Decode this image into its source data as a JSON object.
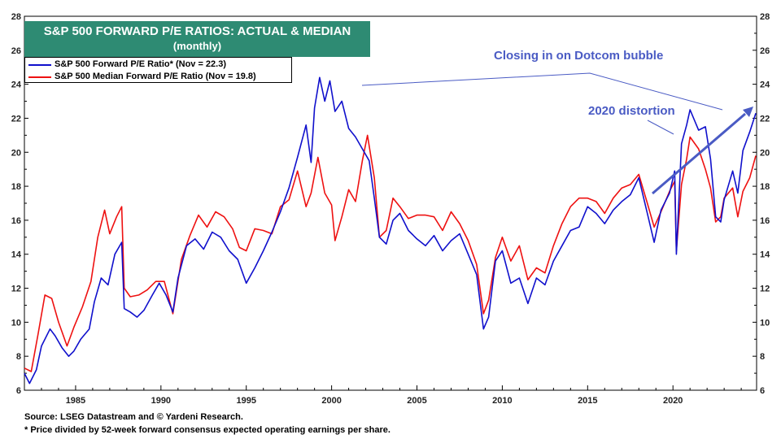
{
  "title": {
    "line1": "S&P 500 FORWARD P/E RATIOS: ACTUAL & MEDIAN",
    "line2": "(monthly)"
  },
  "legend": {
    "items": [
      {
        "label": "S&P 500 Forward P/E Ratio* (Nov = 22.3)",
        "color": "#1010cc"
      },
      {
        "label": "S&P 500 Median Forward P/E Ratio  (Nov = 19.8)",
        "color": "#ee1111"
      }
    ]
  },
  "annotations": {
    "dotcom": "Closing in on Dotcom bubble",
    "distortion": "2020 distortion"
  },
  "footer": {
    "source": "Source: LSEG Datastream and © Yardeni Research.",
    "note": "* Price divided by 52-week forward consensus expected operating earnings per share."
  },
  "colors": {
    "title_bg": "#2e8b73",
    "annotation": "#4a5bc4",
    "actual": "#1010cc",
    "median": "#ee1111"
  },
  "chart_data": {
    "type": "line",
    "title": "S&P 500 FORWARD P/E RATIOS: ACTUAL & MEDIAN",
    "subtitle": "(monthly)",
    "xlabel": "",
    "ylabel": "",
    "xlim": [
      1982.0,
      2024.9
    ],
    "ylim": [
      6,
      28
    ],
    "x_ticks": [
      "1985",
      "1990",
      "1995",
      "2000",
      "2005",
      "2010",
      "2015",
      "2020"
    ],
    "y_ticks": [
      "6",
      "8",
      "10",
      "12",
      "14",
      "16",
      "18",
      "20",
      "22",
      "24",
      "26",
      "28"
    ],
    "grid": false,
    "legend_position": "top-left",
    "series": [
      {
        "name": "S&P 500 Forward P/E Ratio* (Nov = 22.3)",
        "color": "#1010cc",
        "points": [
          [
            1982.0,
            7.0
          ],
          [
            1982.3,
            6.4
          ],
          [
            1982.7,
            7.2
          ],
          [
            1983.0,
            8.6
          ],
          [
            1983.5,
            9.6
          ],
          [
            1983.8,
            9.2
          ],
          [
            1984.2,
            8.5
          ],
          [
            1984.6,
            8.0
          ],
          [
            1984.9,
            8.3
          ],
          [
            1985.3,
            9.0
          ],
          [
            1985.8,
            9.6
          ],
          [
            1986.1,
            11.2
          ],
          [
            1986.5,
            12.6
          ],
          [
            1986.9,
            12.2
          ],
          [
            1987.3,
            14.0
          ],
          [
            1987.7,
            14.7
          ],
          [
            1987.85,
            10.8
          ],
          [
            1988.2,
            10.6
          ],
          [
            1988.6,
            10.3
          ],
          [
            1989.0,
            10.7
          ],
          [
            1989.5,
            11.6
          ],
          [
            1989.9,
            12.3
          ],
          [
            1990.3,
            11.6
          ],
          [
            1990.7,
            10.6
          ],
          [
            1991.0,
            12.6
          ],
          [
            1991.5,
            14.5
          ],
          [
            1992.0,
            14.9
          ],
          [
            1992.5,
            14.3
          ],
          [
            1993.0,
            15.3
          ],
          [
            1993.5,
            15.0
          ],
          [
            1994.0,
            14.2
          ],
          [
            1994.5,
            13.7
          ],
          [
            1995.0,
            12.3
          ],
          [
            1995.5,
            13.2
          ],
          [
            1996.0,
            14.2
          ],
          [
            1996.5,
            15.3
          ],
          [
            1997.0,
            16.5
          ],
          [
            1997.5,
            17.9
          ],
          [
            1998.0,
            19.7
          ],
          [
            1998.5,
            21.6
          ],
          [
            1998.8,
            19.4
          ],
          [
            1999.0,
            22.6
          ],
          [
            1999.3,
            24.4
          ],
          [
            1999.6,
            23.0
          ],
          [
            1999.9,
            24.2
          ],
          [
            2000.2,
            22.4
          ],
          [
            2000.6,
            23.0
          ],
          [
            2001.0,
            21.4
          ],
          [
            2001.4,
            20.9
          ],
          [
            2001.8,
            20.2
          ],
          [
            2002.2,
            19.5
          ],
          [
            2002.5,
            17.3
          ],
          [
            2002.8,
            15.0
          ],
          [
            2003.2,
            14.6
          ],
          [
            2003.6,
            16.0
          ],
          [
            2004.0,
            16.4
          ],
          [
            2004.5,
            15.4
          ],
          [
            2005.0,
            14.9
          ],
          [
            2005.5,
            14.5
          ],
          [
            2006.0,
            15.1
          ],
          [
            2006.5,
            14.2
          ],
          [
            2007.0,
            14.8
          ],
          [
            2007.5,
            15.2
          ],
          [
            2008.0,
            14.0
          ],
          [
            2008.5,
            12.8
          ],
          [
            2008.9,
            9.6
          ],
          [
            2009.2,
            10.3
          ],
          [
            2009.6,
            13.6
          ],
          [
            2010.0,
            14.2
          ],
          [
            2010.5,
            12.3
          ],
          [
            2011.0,
            12.6
          ],
          [
            2011.5,
            11.1
          ],
          [
            2012.0,
            12.6
          ],
          [
            2012.5,
            12.2
          ],
          [
            2013.0,
            13.6
          ],
          [
            2013.5,
            14.5
          ],
          [
            2014.0,
            15.4
          ],
          [
            2014.5,
            15.6
          ],
          [
            2015.0,
            16.8
          ],
          [
            2015.5,
            16.4
          ],
          [
            2016.0,
            15.8
          ],
          [
            2016.5,
            16.6
          ],
          [
            2017.0,
            17.1
          ],
          [
            2017.5,
            17.5
          ],
          [
            2018.0,
            18.5
          ],
          [
            2018.5,
            16.4
          ],
          [
            2018.9,
            14.7
          ],
          [
            2019.3,
            16.6
          ],
          [
            2019.8,
            17.6
          ],
          [
            2020.1,
            18.9
          ],
          [
            2020.2,
            14.0
          ],
          [
            2020.5,
            20.5
          ],
          [
            2020.8,
            21.6
          ],
          [
            2021.0,
            22.5
          ],
          [
            2021.5,
            21.3
          ],
          [
            2021.9,
            21.5
          ],
          [
            2022.2,
            19.6
          ],
          [
            2022.5,
            16.2
          ],
          [
            2022.8,
            15.9
          ],
          [
            2023.0,
            17.2
          ],
          [
            2023.5,
            18.9
          ],
          [
            2023.8,
            17.6
          ],
          [
            2024.1,
            20.1
          ],
          [
            2024.5,
            21.2
          ],
          [
            2024.85,
            22.3
          ]
        ]
      },
      {
        "name": "S&P 500 Median Forward P/E Ratio  (Nov = 19.8)",
        "color": "#ee1111",
        "points": [
          [
            1982.0,
            7.3
          ],
          [
            1982.4,
            7.1
          ],
          [
            1982.8,
            9.3
          ],
          [
            1983.2,
            11.6
          ],
          [
            1983.6,
            11.4
          ],
          [
            1984.0,
            10.0
          ],
          [
            1984.5,
            8.6
          ],
          [
            1984.9,
            9.7
          ],
          [
            1985.4,
            10.9
          ],
          [
            1985.9,
            12.4
          ],
          [
            1986.3,
            15.0
          ],
          [
            1986.7,
            16.6
          ],
          [
            1987.0,
            15.2
          ],
          [
            1987.4,
            16.2
          ],
          [
            1987.7,
            16.8
          ],
          [
            1987.85,
            12.0
          ],
          [
            1988.2,
            11.5
          ],
          [
            1988.7,
            11.6
          ],
          [
            1989.2,
            11.9
          ],
          [
            1989.7,
            12.4
          ],
          [
            1990.2,
            12.4
          ],
          [
            1990.7,
            10.5
          ],
          [
            1991.2,
            13.7
          ],
          [
            1991.7,
            15.1
          ],
          [
            1992.2,
            16.3
          ],
          [
            1992.7,
            15.6
          ],
          [
            1993.2,
            16.5
          ],
          [
            1993.7,
            16.2
          ],
          [
            1994.2,
            15.5
          ],
          [
            1994.6,
            14.4
          ],
          [
            1995.0,
            14.2
          ],
          [
            1995.5,
            15.5
          ],
          [
            1996.0,
            15.4
          ],
          [
            1996.5,
            15.2
          ],
          [
            1997.0,
            16.8
          ],
          [
            1997.5,
            17.2
          ],
          [
            1998.0,
            18.9
          ],
          [
            1998.5,
            16.8
          ],
          [
            1998.8,
            17.6
          ],
          [
            1999.2,
            19.7
          ],
          [
            1999.6,
            17.6
          ],
          [
            2000.0,
            16.9
          ],
          [
            2000.2,
            14.8
          ],
          [
            2000.6,
            16.2
          ],
          [
            2001.0,
            17.8
          ],
          [
            2001.4,
            17.1
          ],
          [
            2001.8,
            19.5
          ],
          [
            2002.1,
            21.0
          ],
          [
            2002.5,
            18.5
          ],
          [
            2002.8,
            15.0
          ],
          [
            2003.2,
            15.4
          ],
          [
            2003.6,
            17.3
          ],
          [
            2004.0,
            16.8
          ],
          [
            2004.5,
            16.1
          ],
          [
            2005.0,
            16.3
          ],
          [
            2005.5,
            16.3
          ],
          [
            2006.0,
            16.2
          ],
          [
            2006.5,
            15.4
          ],
          [
            2007.0,
            16.5
          ],
          [
            2007.5,
            15.8
          ],
          [
            2008.0,
            14.8
          ],
          [
            2008.5,
            13.4
          ],
          [
            2008.9,
            10.5
          ],
          [
            2009.2,
            11.3
          ],
          [
            2009.6,
            13.8
          ],
          [
            2010.0,
            15.0
          ],
          [
            2010.5,
            13.6
          ],
          [
            2011.0,
            14.5
          ],
          [
            2011.5,
            12.5
          ],
          [
            2012.0,
            13.2
          ],
          [
            2012.5,
            12.9
          ],
          [
            2013.0,
            14.5
          ],
          [
            2013.5,
            15.8
          ],
          [
            2014.0,
            16.8
          ],
          [
            2014.5,
            17.3
          ],
          [
            2015.0,
            17.3
          ],
          [
            2015.5,
            17.1
          ],
          [
            2016.0,
            16.4
          ],
          [
            2016.5,
            17.3
          ],
          [
            2017.0,
            17.9
          ],
          [
            2017.5,
            18.1
          ],
          [
            2018.0,
            18.7
          ],
          [
            2018.5,
            17.0
          ],
          [
            2018.9,
            15.6
          ],
          [
            2019.3,
            16.5
          ],
          [
            2019.8,
            17.7
          ],
          [
            2020.1,
            18.3
          ],
          [
            2020.2,
            14.2
          ],
          [
            2020.5,
            18.1
          ],
          [
            2020.8,
            19.6
          ],
          [
            2021.0,
            20.9
          ],
          [
            2021.5,
            20.2
          ],
          [
            2021.9,
            19.0
          ],
          [
            2022.2,
            17.9
          ],
          [
            2022.5,
            15.9
          ],
          [
            2022.8,
            16.2
          ],
          [
            2023.0,
            17.3
          ],
          [
            2023.5,
            17.9
          ],
          [
            2023.8,
            16.2
          ],
          [
            2024.1,
            17.7
          ],
          [
            2024.5,
            18.5
          ],
          [
            2024.85,
            19.8
          ]
        ]
      }
    ]
  }
}
